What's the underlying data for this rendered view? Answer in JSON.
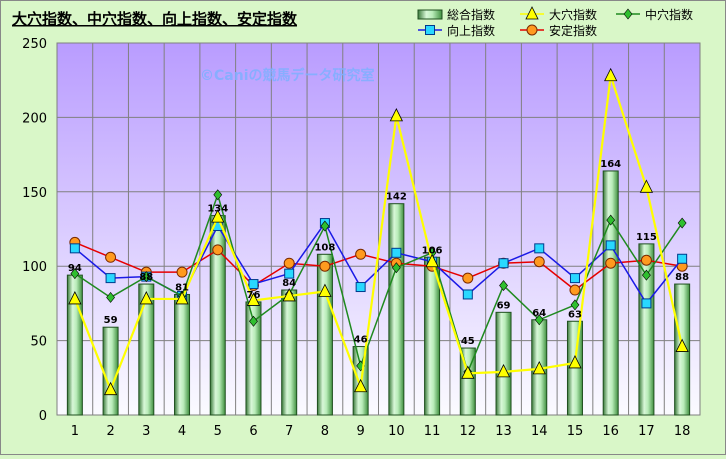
{
  "chart_data": {
    "type": "bar",
    "title": "大穴指数、中穴指数、向上指数、安定指数",
    "watermark": "©Caniの競馬データ研究室",
    "categories": [
      "1",
      "2",
      "3",
      "4",
      "5",
      "6",
      "7",
      "8",
      "9",
      "10",
      "11",
      "12",
      "13",
      "14",
      "15",
      "16",
      "17",
      "18"
    ],
    "ylim": [
      0,
      250
    ],
    "yticks": [
      0,
      50,
      100,
      150,
      200,
      250
    ],
    "grid": true,
    "legend_position": "top-right",
    "series": [
      {
        "name": "総合指数",
        "kind": "bar",
        "color": "#9de39d",
        "values": [
          94,
          59,
          88,
          81,
          134,
          76,
          84,
          108,
          46,
          142,
          106,
          45,
          69,
          64,
          63,
          164,
          115,
          88
        ],
        "data_labels": [
          "94",
          "59",
          "88",
          "81",
          "134",
          "76",
          "84",
          "108",
          "46",
          "142",
          "106",
          "45",
          "69",
          "64",
          "63",
          "164",
          "115",
          "88"
        ]
      },
      {
        "name": "大穴指数",
        "kind": "line",
        "marker": "triangle",
        "color": "#ffff00",
        "values": [
          78,
          17,
          78,
          78,
          133,
          77,
          80,
          83,
          19,
          201,
          103,
          28,
          29,
          31,
          35,
          228,
          153,
          46
        ]
      },
      {
        "name": "中穴指数",
        "kind": "line",
        "marker": "diamond",
        "color": "#1f8a1f",
        "values": [
          95,
          79,
          93,
          80,
          148,
          63,
          81,
          127,
          33,
          99,
          109,
          29,
          87,
          64,
          74,
          131,
          94,
          129
        ]
      },
      {
        "name": "向上指数",
        "kind": "line",
        "marker": "square",
        "color": "#1a1ae6",
        "values": [
          112,
          92,
          93,
          80,
          127,
          88,
          95,
          129,
          86,
          109,
          103,
          81,
          102,
          112,
          92,
          114,
          75,
          105
        ]
      },
      {
        "name": "安定指数",
        "kind": "line",
        "marker": "circle",
        "color": "#e60000",
        "values": [
          116,
          106,
          96,
          96,
          111,
          87,
          102,
          100,
          108,
          102,
          100,
          92,
          102,
          103,
          84,
          102,
          104,
          100
        ]
      }
    ]
  }
}
